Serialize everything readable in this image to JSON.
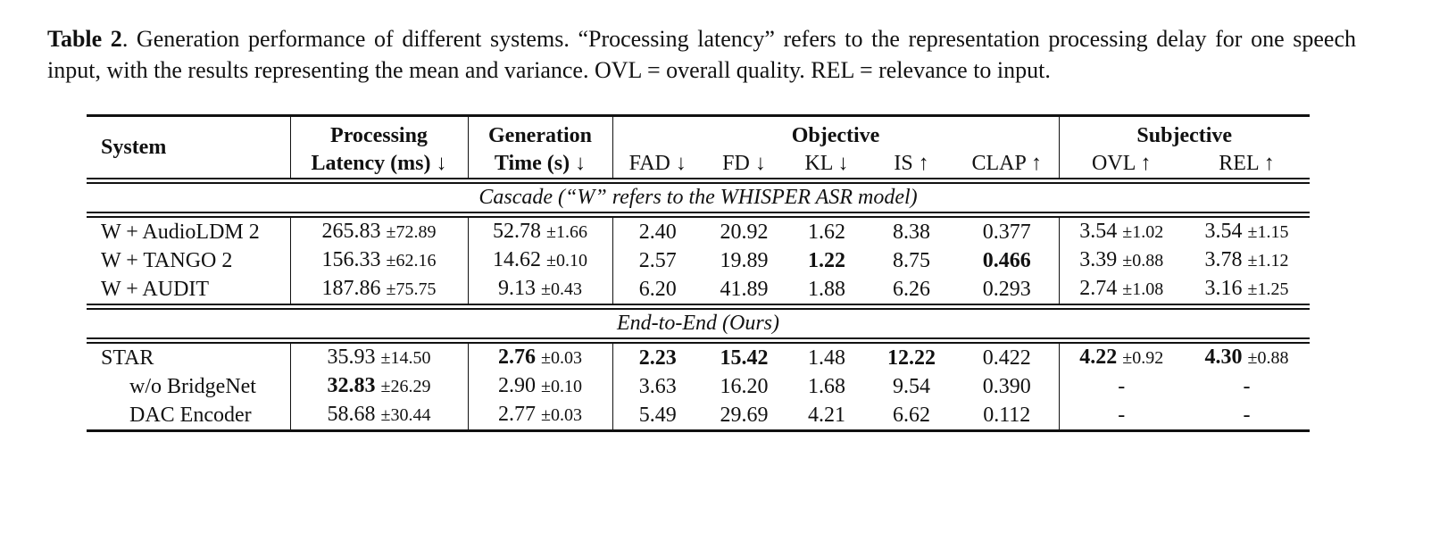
{
  "caption": {
    "label": "Table 2",
    "text": ". Generation performance of different systems. “Processing latency” refers to the representation processing delay for one speech input, with the results representing the mean and variance. OVL = overall quality. REL = relevance to input."
  },
  "header": {
    "system": "System",
    "processing": [
      "Processing",
      "Latency (ms) ↓"
    ],
    "generation": [
      "Generation",
      "Time (s) ↓"
    ],
    "objective": {
      "label": "Objective",
      "columns": [
        "FAD ↓",
        "FD ↓",
        "KL ↓",
        "IS ↑",
        "CLAP ↑"
      ]
    },
    "subjective": {
      "label": "Subjective",
      "columns": [
        "OVL ↑",
        "REL ↑"
      ]
    }
  },
  "sections": [
    {
      "title": "Cascade (“W” refers to the WHISPER ASR model)",
      "rows": [
        {
          "system": "W + AudioLDM 2",
          "cells": [
            {
              "value": "265.83",
              "std": "±72.89"
            },
            {
              "value": "52.78",
              "std": "±1.66"
            },
            "2.40",
            "20.92",
            "1.62",
            "8.38",
            "0.377",
            {
              "value": "3.54",
              "std": "±1.02"
            },
            {
              "value": "3.54",
              "std": "±1.15"
            }
          ]
        },
        {
          "system": "W + TANGO 2",
          "cells": [
            {
              "value": "156.33",
              "std": "±62.16"
            },
            {
              "value": "14.62",
              "std": "±0.10"
            },
            "2.57",
            "19.89",
            {
              "value": "1.22",
              "bold": true
            },
            "8.75",
            {
              "value": "0.466",
              "bold": true
            },
            {
              "value": "3.39",
              "std": "±0.88"
            },
            {
              "value": "3.78",
              "std": "±1.12"
            }
          ]
        },
        {
          "system": "W + AUDIT",
          "cells": [
            {
              "value": "187.86",
              "std": "±75.75"
            },
            {
              "value": "9.13",
              "std": "±0.43"
            },
            "6.20",
            "41.89",
            "1.88",
            "6.26",
            "0.293",
            {
              "value": "2.74",
              "std": "±1.08"
            },
            {
              "value": "3.16",
              "std": "±1.25"
            }
          ]
        }
      ]
    },
    {
      "title": "End-to-End (Ours)",
      "rows": [
        {
          "system": "STAR",
          "cells": [
            {
              "value": "35.93",
              "std": "±14.50"
            },
            {
              "value": "2.76",
              "std": "±0.03",
              "bold": true
            },
            {
              "value": "2.23",
              "bold": true
            },
            {
              "value": "15.42",
              "bold": true
            },
            "1.48",
            {
              "value": "12.22",
              "bold": true
            },
            "0.422",
            {
              "value": "4.22",
              "std": "±0.92",
              "bold": true
            },
            {
              "value": "4.30",
              "std": "±0.88",
              "bold": true
            }
          ]
        },
        {
          "system": "w/o BridgeNet",
          "indent": true,
          "cells": [
            {
              "value": "32.83",
              "std": "±26.29",
              "bold": true
            },
            {
              "value": "2.90",
              "std": "±0.10"
            },
            "3.63",
            "16.20",
            "1.68",
            "9.54",
            "0.390",
            "-",
            "-"
          ]
        },
        {
          "system": "DAC Encoder",
          "indent": true,
          "cells": [
            {
              "value": "58.68",
              "std": "±30.44"
            },
            {
              "value": "2.77",
              "std": "±0.03"
            },
            "5.49",
            "29.69",
            "4.21",
            "6.62",
            "0.112",
            "-",
            "-"
          ]
        }
      ]
    }
  ]
}
